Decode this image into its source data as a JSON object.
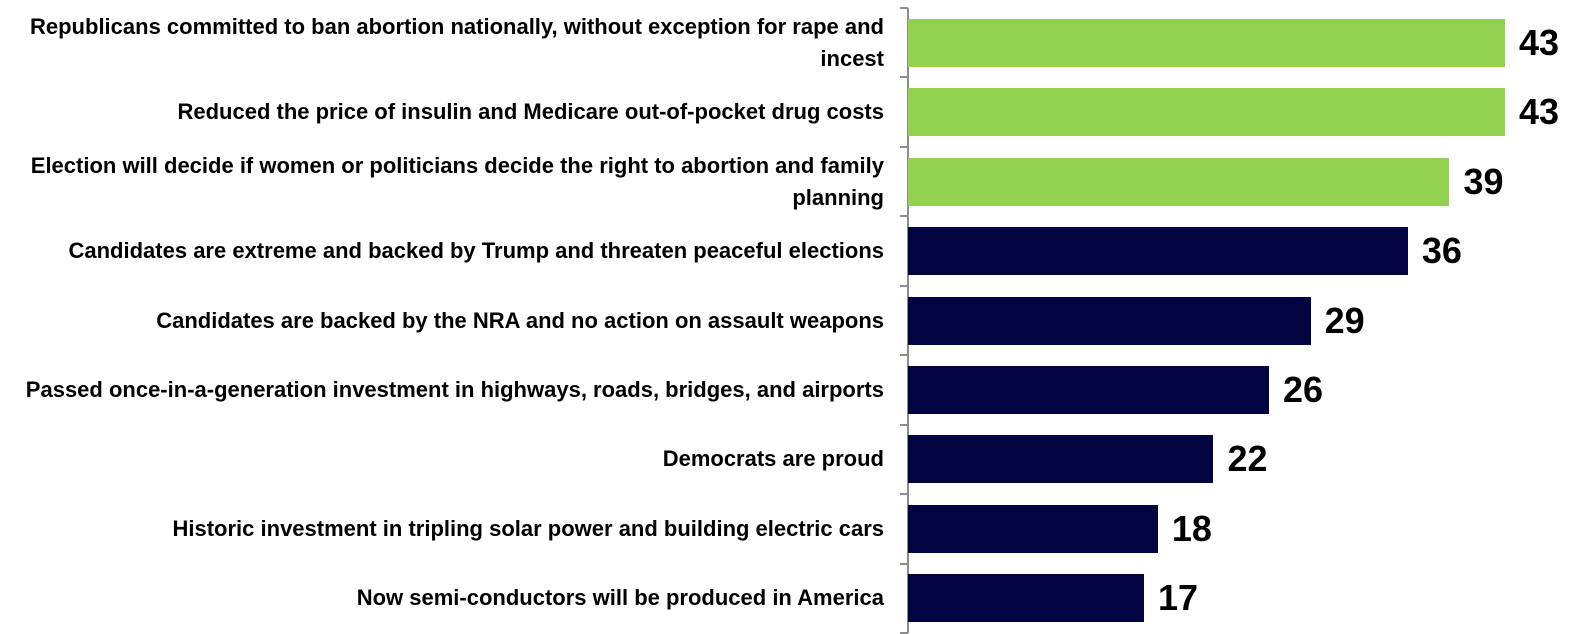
{
  "chart_data": {
    "type": "bar",
    "orientation": "horizontal",
    "categories": [
      "Republicans committed to ban abortion nationally, without exception for rape and incest",
      "Reduced the price of insulin and Medicare out-of-pocket drug costs",
      "Election will decide if women or politicians decide the right to abortion and family planning",
      "Candidates are extreme and backed by Trump and threaten peaceful elections",
      "Candidates are backed by the NRA and no action on assault weapons",
      "Passed once-in-a-generation investment in highways, roads, bridges, and airports",
      "Democrats are proud",
      "Historic investment in tripling solar power and building electric cars",
      "Now semi-conductors will be produced in America"
    ],
    "values": [
      43,
      43,
      39,
      36,
      29,
      26,
      22,
      18,
      17
    ],
    "value_labels": [
      "43",
      "43",
      "39",
      "36",
      "29",
      "26",
      "22",
      "18",
      "17"
    ],
    "bar_colors": [
      "#92d050",
      "#92d050",
      "#92d050",
      "#020341",
      "#020341",
      "#020341",
      "#020341",
      "#020341",
      "#020341"
    ],
    "title": "",
    "xlabel": "",
    "ylabel": "",
    "xlim": [
      0,
      43
    ],
    "grid": false,
    "legend": "none"
  }
}
